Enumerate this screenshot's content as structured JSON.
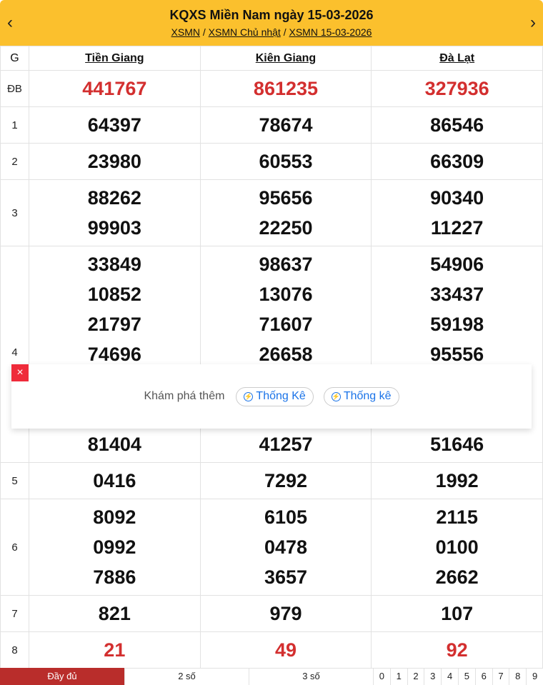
{
  "header": {
    "title": "KQXS Miền Nam ngày 15-03-2026",
    "breadcrumb": [
      "XSMN",
      "XSMN Chủ nhật",
      "XSMN 15-03-2026"
    ],
    "sep": "/",
    "prev": "‹",
    "next": "›"
  },
  "table": {
    "g_label": "G",
    "provinces": [
      "Tiền Giang",
      "Kiên Giang",
      "Đà Lạt"
    ],
    "rows": [
      {
        "label": "ĐB",
        "highlight": true,
        "values": [
          [
            "441767"
          ],
          [
            "861235"
          ],
          [
            "327936"
          ]
        ]
      },
      {
        "label": "1",
        "values": [
          [
            "64397"
          ],
          [
            "78674"
          ],
          [
            "86546"
          ]
        ]
      },
      {
        "label": "2",
        "values": [
          [
            "23980"
          ],
          [
            "60553"
          ],
          [
            "66309"
          ]
        ]
      },
      {
        "label": "3",
        "values": [
          [
            "88262",
            "99903"
          ],
          [
            "95656",
            "22250"
          ],
          [
            "90340",
            "11227"
          ]
        ]
      },
      {
        "label": "4",
        "values": [
          [
            "33849",
            "10852",
            "21797",
            "74696",
            "",
            "",
            "81404"
          ],
          [
            "98637",
            "13076",
            "71607",
            "26658",
            "",
            "",
            "41257"
          ],
          [
            "54906",
            "33437",
            "59198",
            "95556",
            "",
            "",
            "51646"
          ]
        ]
      },
      {
        "label": "5",
        "values": [
          [
            "0416"
          ],
          [
            "7292"
          ],
          [
            "1992"
          ]
        ]
      },
      {
        "label": "6",
        "values": [
          [
            "8092",
            "0992",
            "7886"
          ],
          [
            "6105",
            "0478",
            "3657"
          ],
          [
            "2115",
            "0100",
            "2662"
          ]
        ]
      },
      {
        "label": "7",
        "values": [
          [
            "821"
          ],
          [
            "979"
          ],
          [
            "107"
          ]
        ]
      },
      {
        "label": "8",
        "highlight": true,
        "values": [
          [
            "21"
          ],
          [
            "49"
          ],
          [
            "92"
          ]
        ]
      }
    ]
  },
  "popup": {
    "close": "×",
    "label": "Khám phá thêm",
    "chips": [
      "Thống Kê",
      "Thống kê"
    ]
  },
  "footer": {
    "tabs": [
      "Đầy đủ",
      "2 số",
      "3 số"
    ],
    "digits": [
      "0",
      "1",
      "2",
      "3",
      "4",
      "5",
      "6",
      "7",
      "8",
      "9"
    ]
  },
  "colors": {
    "header_bg": "#fbc02d",
    "highlight": "#d32f2f",
    "active_tab": "#b92d2b",
    "chip": "#1a73e8"
  }
}
